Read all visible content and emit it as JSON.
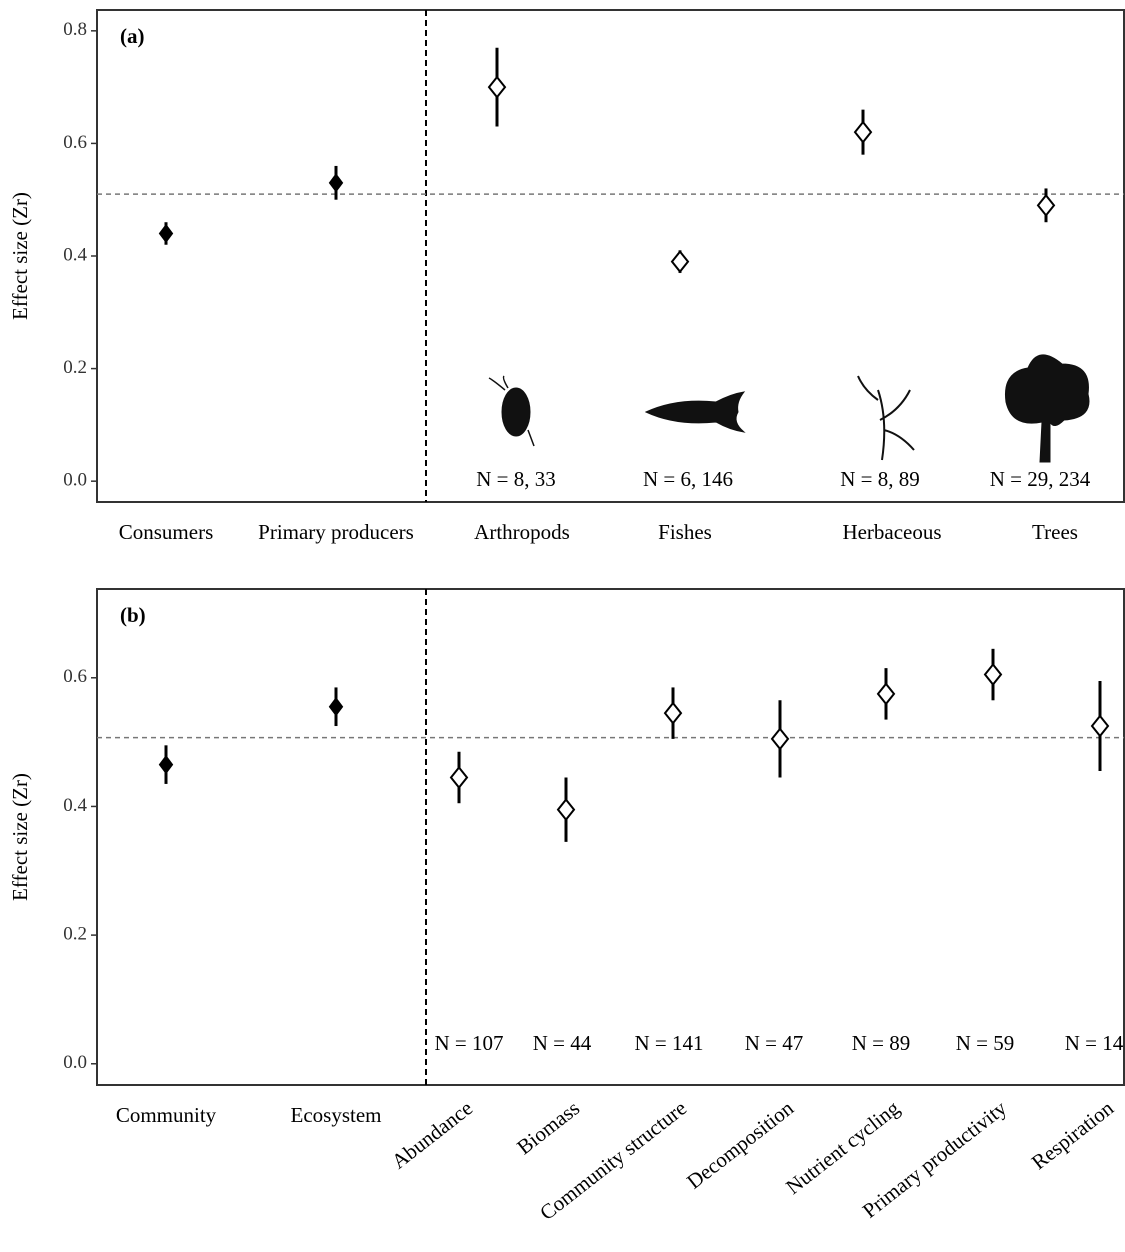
{
  "chart_data": [
    {
      "type": "errorpoint",
      "panel_label": "(a)",
      "ylabel": "Effect size (Zr)",
      "categories": [
        "Consumers",
        "Primary producers",
        "Arthropods",
        "Fishes",
        "Herbaceous",
        "Trees"
      ],
      "values": [
        0.44,
        0.53,
        0.7,
        0.39,
        0.62,
        0.49
      ],
      "lower": [
        0.42,
        0.5,
        0.63,
        0.37,
        0.58,
        0.46
      ],
      "upper": [
        0.46,
        0.56,
        0.77,
        0.41,
        0.66,
        0.52
      ],
      "filled": [
        true,
        true,
        false,
        false,
        false,
        false
      ],
      "annotations": [
        "N = 8, 33",
        "N = 6, 146",
        "N = 8, 89",
        "N = 29, 234"
      ],
      "ref_line": 0.51,
      "ylim": [
        -0.037,
        0.837
      ],
      "yticks": [
        {
          "value": 0,
          "label": "0.0"
        },
        0.2,
        0.4,
        0.6,
        0.8
      ]
    },
    {
      "type": "errorpoint",
      "panel_label": "(b)",
      "ylabel": "Effect size (Zr)",
      "categories": [
        "Community",
        "Ecosystem",
        "Abundance",
        "Biomass",
        "Community structure",
        "Decomposition",
        "Nutrient cycling",
        "Primary productivity",
        "Respiration"
      ],
      "values": [
        0.465,
        0.555,
        0.445,
        0.395,
        0.545,
        0.505,
        0.575,
        0.605,
        0.525
      ],
      "lower": [
        0.435,
        0.525,
        0.405,
        0.345,
        0.505,
        0.445,
        0.535,
        0.565,
        0.455
      ],
      "upper": [
        0.495,
        0.585,
        0.485,
        0.445,
        0.585,
        0.565,
        0.615,
        0.645,
        0.595
      ],
      "filled": [
        true,
        true,
        false,
        false,
        false,
        false,
        false,
        false,
        false
      ],
      "annotations": [
        "N = 107",
        "N = 44",
        "N = 141",
        "N = 47",
        "N = 89",
        "N = 59",
        "N = 14"
      ],
      "ref_line": 0.507,
      "ylim": [
        -0.033,
        0.738
      ],
      "yticks": [
        {
          "value": 0,
          "label": "0.0"
        },
        0.2,
        0.4,
        0.6
      ]
    }
  ]
}
